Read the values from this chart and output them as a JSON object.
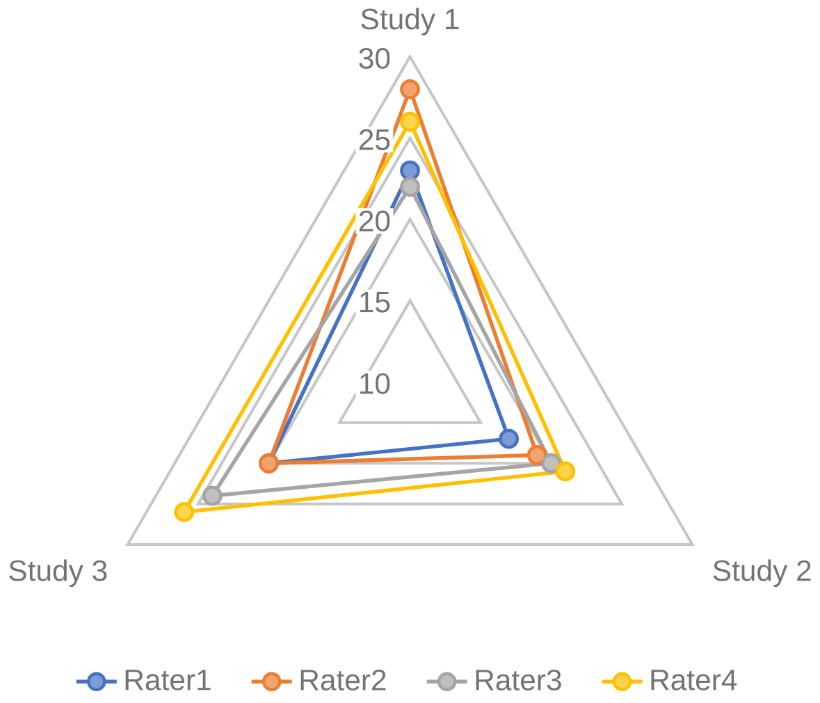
{
  "chart_data": {
    "type": "radar",
    "categories": [
      "Study 1",
      "Study 2",
      "Study 3"
    ],
    "series": [
      {
        "name": "Rater1",
        "color": "#4472c4",
        "values": [
          23,
          17,
          20
        ]
      },
      {
        "name": "Rater2",
        "color": "#ed7d31",
        "values": [
          28,
          19,
          20
        ]
      },
      {
        "name": "Rater3",
        "color": "#a5a5a5",
        "values": [
          22,
          20,
          24
        ]
      },
      {
        "name": "Rater4",
        "color": "#ffc000",
        "values": [
          26,
          21,
          26
        ]
      }
    ],
    "ylim": [
      10,
      30
    ],
    "yticks": [
      10,
      15,
      20,
      25,
      30
    ],
    "grid": true,
    "legend": "bottom",
    "marker": "circle",
    "line_style": "solid"
  }
}
